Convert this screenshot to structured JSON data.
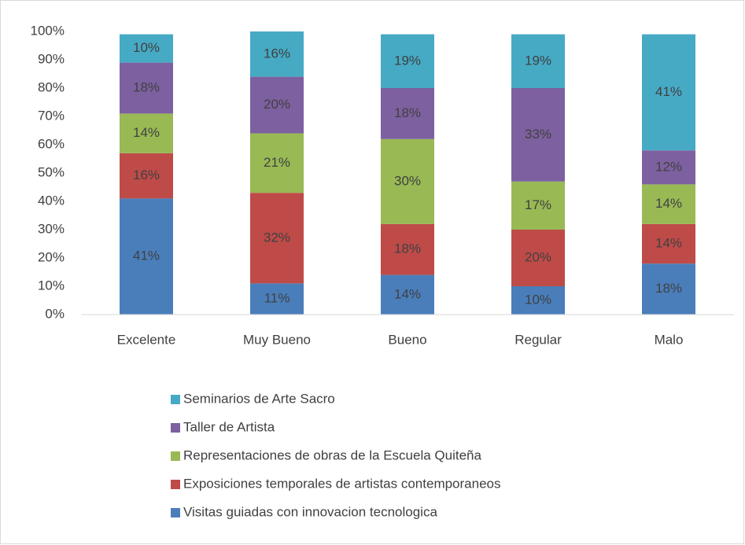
{
  "chart_data": {
    "type": "stacked_bar",
    "categories": [
      "Excelente",
      "Muy Bueno",
      "Bueno",
      "Regular",
      "Malo"
    ],
    "series": [
      {
        "name": "Visitas guiadas con innovacion tecnologica",
        "color": "#4a7ebb",
        "values": [
          41,
          11,
          14,
          10,
          18
        ],
        "value_labels": [
          "41%",
          "11%",
          "14%",
          "10%",
          "18%"
        ]
      },
      {
        "name": "Exposiciones temporales de artistas contemporaneos",
        "color": "#be4b48",
        "values": [
          16,
          32,
          18,
          20,
          14
        ],
        "value_labels": [
          "16%",
          "32%",
          "18%",
          "20%",
          "14%"
        ]
      },
      {
        "name": "Representaciones de obras de la Escuela Quiteña",
        "color": "#98b954",
        "values": [
          14,
          21,
          30,
          17,
          14
        ],
        "value_labels": [
          "14%",
          "21%",
          "30%",
          "17%",
          "14%"
        ]
      },
      {
        "name": "Taller de Artista",
        "color": "#7d60a0",
        "values": [
          18,
          20,
          18,
          33,
          12
        ],
        "value_labels": [
          "18%",
          "20%",
          "18%",
          "33%",
          "12%"
        ]
      },
      {
        "name": "Seminarios de Arte Sacro",
        "color": "#46aac5",
        "values": [
          10,
          16,
          19,
          19,
          41
        ],
        "value_labels": [
          "10%",
          "16%",
          "19%",
          "19%",
          "41%"
        ]
      }
    ],
    "ylim": [
      0,
      100
    ],
    "yticks": [
      {
        "value": 0,
        "label": "0%"
      },
      {
        "value": 10,
        "label": "10%"
      },
      {
        "value": 20,
        "label": "20%"
      },
      {
        "value": 30,
        "label": "30%"
      },
      {
        "value": 40,
        "label": "40%"
      },
      {
        "value": 50,
        "label": "50%"
      },
      {
        "value": 60,
        "label": "60%"
      },
      {
        "value": 70,
        "label": "70%"
      },
      {
        "value": 80,
        "label": "80%"
      },
      {
        "value": 90,
        "label": "90%"
      },
      {
        "value": 100,
        "label": "100%"
      }
    ],
    "grid": false,
    "legend": "bottom"
  }
}
